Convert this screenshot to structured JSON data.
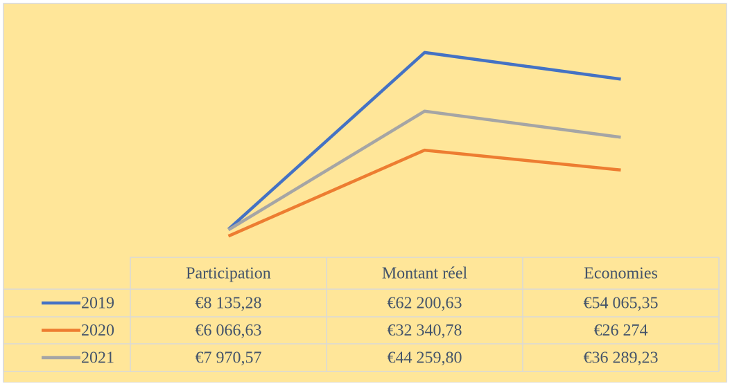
{
  "chart_data": {
    "type": "line",
    "categories": [
      "Participation",
      "Montant réel",
      "Economies"
    ],
    "series": [
      {
        "name": "2019",
        "color": "#4472C4",
        "values": [
          8135.28,
          62200.63,
          54065.35
        ],
        "value_labels": [
          "€8 135,28",
          "€62 200,63",
          "€54 065,35"
        ]
      },
      {
        "name": "2020",
        "color": "#ED7D31",
        "values": [
          6066.63,
          32340.78,
          26274
        ],
        "value_labels": [
          "€6 066,63",
          "€32 340,78",
          "€26 274"
        ]
      },
      {
        "name": "2021",
        "color": "#A5A5A5",
        "values": [
          7970.57,
          44259.8,
          36289.23
        ],
        "value_labels": [
          "€7 970,57",
          "€44 259,80",
          "€36 289,23"
        ]
      }
    ],
    "ylim": [
      0,
      70000
    ]
  }
}
